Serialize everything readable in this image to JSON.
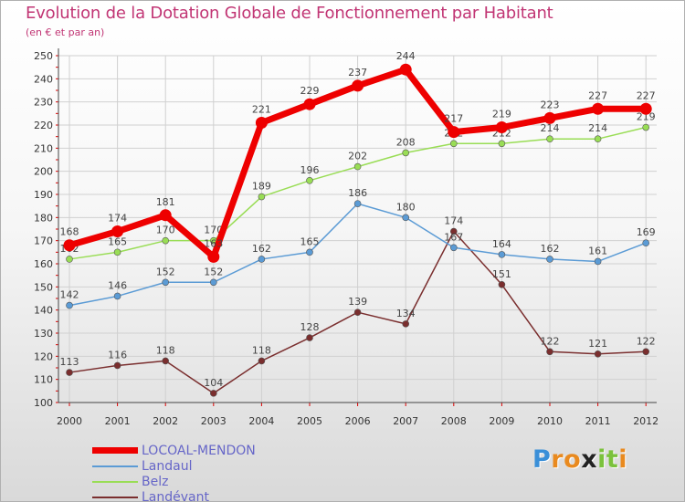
{
  "title": "Evolution de la Dotation Globale de Fonctionnement par Habitant",
  "subtitle": "(en € et par an)",
  "chart_data": {
    "type": "line",
    "title": "Evolution de la Dotation Globale de Fonctionnement par Habitant",
    "ylabel": "(en € et par an)",
    "xlabel": "",
    "x": [
      "2000",
      "2001",
      "2002",
      "2003",
      "2004",
      "2005",
      "2006",
      "2007",
      "2008",
      "2009",
      "2010",
      "2011",
      "2012"
    ],
    "ylim": [
      100,
      250
    ],
    "yticks": [
      100,
      110,
      120,
      130,
      140,
      150,
      160,
      170,
      180,
      190,
      200,
      210,
      220,
      230,
      240,
      250
    ],
    "grid": true,
    "legend": "bottom-left",
    "series": [
      {
        "name": "LOCOAL-MENDON",
        "color": "#ee0000",
        "values": [
          168,
          174,
          181,
          163,
          221,
          229,
          237,
          244,
          217,
          219,
          223,
          227,
          227
        ]
      },
      {
        "name": "Landaul",
        "color": "#5b9bd5",
        "values": [
          142,
          146,
          152,
          152,
          162,
          165,
          186,
          180,
          167,
          164,
          162,
          161,
          169
        ]
      },
      {
        "name": "Belz",
        "color": "#99dd55",
        "values": [
          162,
          165,
          170,
          170,
          189,
          196,
          202,
          208,
          212,
          212,
          214,
          214,
          219
        ]
      },
      {
        "name": "Landévant",
        "color": "#7a2e2e",
        "values": [
          113,
          116,
          118,
          104,
          118,
          128,
          139,
          134,
          174,
          151,
          122,
          121,
          122
        ]
      }
    ]
  },
  "logo": {
    "letters": [
      "P",
      "r",
      "o",
      "x",
      "i",
      "t",
      "i"
    ],
    "colors": [
      "#3a8fd8",
      "#e98a1f",
      "#e98a1f",
      "#222222",
      "#7bc23c",
      "#7bc23c",
      "#e98a1f"
    ]
  }
}
